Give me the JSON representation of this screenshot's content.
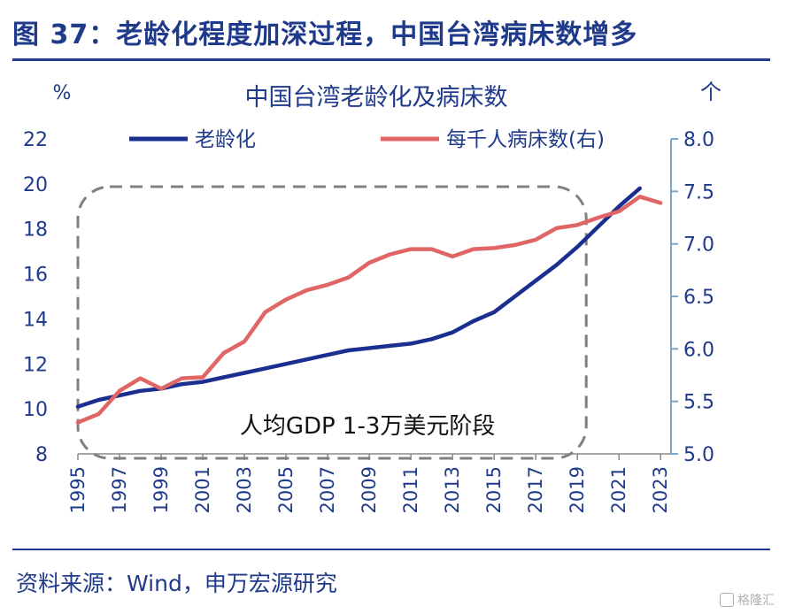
{
  "figure": {
    "title": "图 37：老龄化程度加深过程，中国台湾病床数增多",
    "source": "资料来源：Wind，申万宏源研究",
    "watermark": "格隆汇"
  },
  "colors": {
    "brand": "#1f3a8a",
    "aging": "#1a2f8f",
    "beds": "#e06666",
    "box": "#808080",
    "axis_right": "#7aa6c9"
  },
  "chart_data": {
    "type": "line",
    "title": "中国台湾老龄化及病床数",
    "ylabel_left": "%",
    "ylabel_right": "个",
    "ylim_left": [
      8,
      22
    ],
    "yticks_left": [
      8,
      10,
      12,
      14,
      16,
      18,
      20,
      22
    ],
    "ylim_right": [
      5.0,
      8.0
    ],
    "yticks_right": [
      "5.0",
      "5.5",
      "6.0",
      "6.5",
      "7.0",
      "7.5",
      "8.0"
    ],
    "xlim": [
      1995,
      2024
    ],
    "xticks": [
      "1995",
      "1997",
      "1999",
      "2001",
      "2003",
      "2005",
      "2007",
      "2009",
      "2011",
      "2013",
      "2015",
      "2017",
      "2019",
      "2021",
      "2023"
    ],
    "annotation": "人均GDP 1-3万美元阶段",
    "highlight_range": [
      1995,
      2019
    ],
    "series": [
      {
        "name": "老龄化",
        "axis": "left",
        "x": [
          1995,
          1996,
          1997,
          1998,
          1999,
          2000,
          2001,
          2002,
          2003,
          2004,
          2005,
          2006,
          2007,
          2008,
          2009,
          2010,
          2011,
          2012,
          2013,
          2014,
          2015,
          2016,
          2017,
          2018,
          2019,
          2020,
          2021,
          2022
        ],
        "values": [
          10.1,
          10.4,
          10.6,
          10.8,
          10.9,
          11.1,
          11.2,
          11.4,
          11.6,
          11.8,
          12.0,
          12.2,
          12.4,
          12.6,
          12.7,
          12.8,
          12.9,
          13.1,
          13.4,
          13.9,
          14.3,
          15.0,
          15.7,
          16.4,
          17.2,
          18.1,
          19.0,
          19.8
        ]
      },
      {
        "name": "每千人病床数(右)",
        "axis": "right",
        "x": [
          1995,
          1996,
          1997,
          1998,
          1999,
          2000,
          2001,
          2002,
          2003,
          2004,
          2005,
          2006,
          2007,
          2008,
          2009,
          2010,
          2011,
          2012,
          2013,
          2014,
          2015,
          2016,
          2017,
          2018,
          2019,
          2020,
          2021,
          2022,
          2023
        ],
        "values": [
          5.3,
          5.38,
          5.6,
          5.72,
          5.62,
          5.72,
          5.73,
          5.96,
          6.07,
          6.35,
          6.47,
          6.56,
          6.61,
          6.68,
          6.82,
          6.9,
          6.95,
          6.95,
          6.88,
          6.95,
          6.96,
          6.99,
          7.04,
          7.15,
          7.18,
          7.25,
          7.31,
          7.45,
          7.39
        ]
      }
    ]
  }
}
